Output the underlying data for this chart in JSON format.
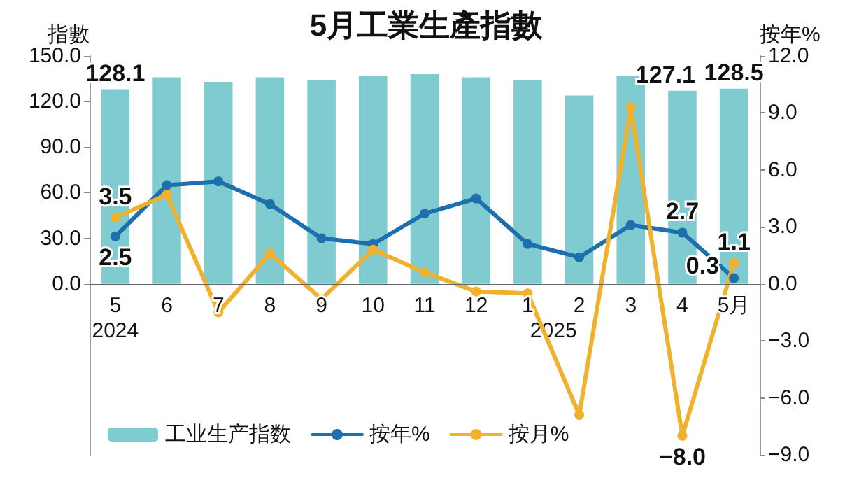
{
  "chart_data": {
    "type": "bar",
    "title": "5月工業生產指數",
    "ylabel": "指數",
    "y2label": "按年%",
    "categories": [
      "5",
      "6",
      "7",
      "8",
      "9",
      "10",
      "11",
      "12",
      "1",
      "2",
      "3",
      "4",
      "5月"
    ],
    "series": [
      {
        "name": "工业生产指数",
        "color": "#7fcbd0",
        "values": [
          128.1,
          136,
          133,
          136,
          134,
          137,
          138,
          136,
          134,
          124,
          137,
          127.1,
          128.5
        ],
        "value_labels": [
          "128.1",
          null,
          null,
          null,
          null,
          null,
          null,
          null,
          null,
          null,
          null,
          "127.1",
          "128.5"
        ]
      },
      {
        "name": "按年%",
        "type": "line",
        "axis": "y2",
        "color": "#1d6fae",
        "values": [
          2.5,
          5.2,
          5.4,
          4.2,
          2.4,
          2.1,
          3.7,
          4.5,
          2.1,
          1.4,
          3.1,
          2.7,
          0.3
        ],
        "value_labels": [
          "2.5",
          null,
          null,
          null,
          null,
          null,
          null,
          null,
          null,
          null,
          null,
          "2.7",
          "0.3"
        ]
      },
      {
        "name": "按月%",
        "type": "line",
        "axis": "y2",
        "color": "#efb12e",
        "values": [
          3.5,
          4.7,
          -1.5,
          1.6,
          -0.8,
          1.8,
          0.6,
          -0.4,
          -0.5,
          -6.9,
          9.3,
          -8.0,
          1.1
        ],
        "value_labels": [
          "3.5",
          null,
          null,
          null,
          null,
          null,
          null,
          null,
          null,
          null,
          null,
          "−8.0",
          "1.1"
        ]
      }
    ],
    "ylim": [
      -112.5,
      150
    ],
    "yticks": [
      {
        "value": 0,
        "label": "0.0"
      },
      {
        "value": 30,
        "label": "30.0"
      },
      {
        "value": 60,
        "label": "60.0"
      },
      {
        "value": 90,
        "label": "90.0"
      },
      {
        "value": 120,
        "label": "120.0"
      },
      {
        "value": 150,
        "label": "150.0"
      }
    ],
    "y2lim": [
      -9,
      12
    ],
    "y2ticks": [
      {
        "value": -9,
        "label": "−9.0"
      },
      {
        "value": -6,
        "label": "−6.0"
      },
      {
        "value": -3,
        "label": "−3.0"
      },
      {
        "value": 0,
        "label": "0.0"
      },
      {
        "value": 3,
        "label": "3.0"
      },
      {
        "value": 6,
        "label": "6.0"
      },
      {
        "value": 9,
        "label": "9.0"
      },
      {
        "value": 12,
        "label": "12.0"
      }
    ],
    "annotations": [
      "2024",
      "2025"
    ],
    "marker": "circle",
    "legend": "bottom left"
  }
}
